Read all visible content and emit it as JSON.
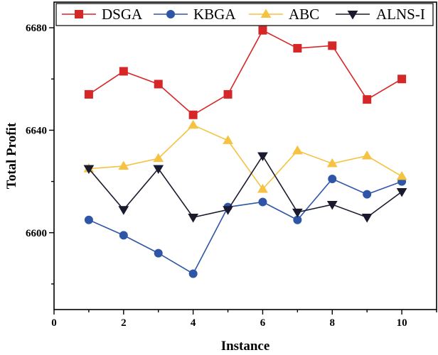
{
  "chart_data": {
    "type": "line",
    "xlabel": "Instance",
    "ylabel": "Total Profit",
    "xlim": [
      0,
      11
    ],
    "ylim": [
      6570,
      6690
    ],
    "x_ticks": [
      0,
      2,
      4,
      6,
      8,
      10
    ],
    "y_ticks": [
      6600,
      6640,
      6680
    ],
    "x_tick_labels": [
      "0",
      "2",
      "4",
      "6",
      "8",
      "10"
    ],
    "y_tick_labels": [
      "6600",
      "6640",
      "6680"
    ],
    "grid": false,
    "legend_position": "top",
    "x": [
      1,
      2,
      3,
      4,
      5,
      6,
      7,
      8,
      9,
      10
    ],
    "series": [
      {
        "name": "DSGA",
        "color": "#d62728",
        "marker": "square",
        "values": [
          6654,
          6663,
          6658,
          6646,
          6654,
          6679,
          6672,
          6673,
          6652,
          6660
        ]
      },
      {
        "name": "KBGA",
        "color": "#2f56a6",
        "marker": "circle",
        "values": [
          6605,
          6599,
          6592,
          6584,
          6610,
          6612,
          6605,
          6621,
          6615,
          6620
        ]
      },
      {
        "name": "ABC",
        "color": "#f5c242",
        "marker": "triangle-up",
        "values": [
          6625,
          6626,
          6629,
          6642,
          6636,
          6617,
          6632,
          6627,
          6630,
          6622
        ]
      },
      {
        "name": "ALNS-I",
        "color": "#1a1a2e",
        "marker": "triangle-down",
        "values": [
          6625,
          6609,
          6625,
          6606,
          6609,
          6630,
          6608,
          6611,
          6606,
          6616
        ]
      }
    ]
  }
}
